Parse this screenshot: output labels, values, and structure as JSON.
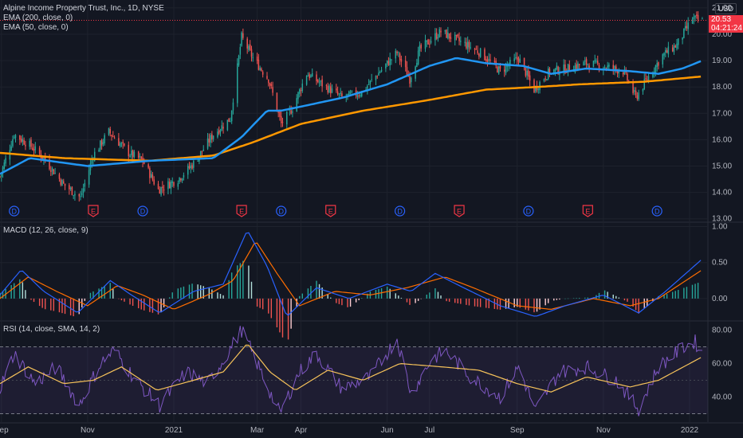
{
  "header": {
    "title": "Alpine Income Property Trust, Inc., 1D, NYSE",
    "ema200_label": "EMA (200, close, 0)",
    "ema50_label": "EMA (50, close, 0)",
    "currency": "USD",
    "price_badge": "20.53",
    "timer_badge": "04:21:24"
  },
  "colors": {
    "background": "#131722",
    "up": "#26a69a",
    "down": "#ef5350",
    "ema50": "#2196f3",
    "ema200": "#ff9800",
    "macd": "#2962ff",
    "signal": "#ff6d00",
    "rsi": "#7e57c2",
    "rsi_ma": "#f7c35a",
    "grid": "#1e222d"
  },
  "events": [
    {
      "label": "D",
      "type": "dividend",
      "date": "2020-09-10"
    },
    {
      "label": "E",
      "type": "earnings",
      "date": "2020-11-05"
    },
    {
      "label": "D",
      "type": "dividend",
      "date": "2020-12-10"
    },
    {
      "label": "E",
      "type": "earnings",
      "date": "2021-02-18"
    },
    {
      "label": "D",
      "type": "dividend",
      "date": "2021-03-18"
    },
    {
      "label": "E",
      "type": "earnings",
      "date": "2021-04-22"
    },
    {
      "label": "D",
      "type": "dividend",
      "date": "2021-06-10"
    },
    {
      "label": "E",
      "type": "earnings",
      "date": "2021-07-22"
    },
    {
      "label": "D",
      "type": "dividend",
      "date": "2021-09-09"
    },
    {
      "label": "E",
      "type": "earnings",
      "date": "2021-10-21"
    },
    {
      "label": "D",
      "type": "dividend",
      "date": "2021-12-09"
    }
  ],
  "chart_data": [
    {
      "type": "candlestick",
      "title": "Alpine Income Property Trust, Inc., 1D, NYSE",
      "xlim": [
        "2020-08-31",
        "2022-01-14"
      ],
      "ylim": [
        12.9,
        21.3
      ],
      "y_ticks": [
        "13.00",
        "14.00",
        "15.00",
        "16.00",
        "17.00",
        "18.00",
        "19.00",
        "20.00",
        "21.00"
      ],
      "x_ticks": [
        {
          "label": "Sep",
          "date": "2020-09-01"
        },
        {
          "label": "Nov",
          "date": "2020-11-01"
        },
        {
          "label": "2021",
          "date": "2021-01-01"
        },
        {
          "label": "Mar",
          "date": "2021-03-01"
        },
        {
          "label": "Apr",
          "date": "2021-04-01"
        },
        {
          "label": "Jun",
          "date": "2021-06-01"
        },
        {
          "label": "Jul",
          "date": "2021-07-01"
        },
        {
          "label": "Sep",
          "date": "2021-09-01"
        },
        {
          "label": "Nov",
          "date": "2021-11-01"
        },
        {
          "label": "2022",
          "date": "2022-01-01"
        }
      ],
      "close_anchors": [
        [
          "2020-08-31",
          14.6
        ],
        [
          "2020-09-10",
          16.2
        ],
        [
          "2020-09-21",
          15.8
        ],
        [
          "2020-10-01",
          15.3
        ],
        [
          "2020-10-15",
          14.3
        ],
        [
          "2020-10-27",
          13.8
        ],
        [
          "2020-11-05",
          15.4
        ],
        [
          "2020-11-16",
          16.3
        ],
        [
          "2020-11-30",
          15.5
        ],
        [
          "2020-12-10",
          15.2
        ],
        [
          "2020-12-21",
          14.1
        ],
        [
          "2021-01-04",
          14.5
        ],
        [
          "2021-01-15",
          15.1
        ],
        [
          "2021-01-29",
          16.2
        ],
        [
          "2021-02-10",
          16.8
        ],
        [
          "2021-02-18",
          19.9
        ],
        [
          "2021-02-26",
          19.1
        ],
        [
          "2021-03-09",
          18.3
        ],
        [
          "2021-03-18",
          16.6
        ],
        [
          "2021-03-26",
          17.2
        ],
        [
          "2021-04-05",
          18.5
        ],
        [
          "2021-04-16",
          18.1
        ],
        [
          "2021-04-30",
          17.6
        ],
        [
          "2021-05-14",
          17.8
        ],
        [
          "2021-05-27",
          18.6
        ],
        [
          "2021-06-08",
          19.3
        ],
        [
          "2021-06-17",
          18.3
        ],
        [
          "2021-06-24",
          19.4
        ],
        [
          "2021-07-02",
          19.8
        ],
        [
          "2021-07-09",
          20.1
        ],
        [
          "2021-07-16",
          19.9
        ],
        [
          "2021-07-27",
          19.6
        ],
        [
          "2021-08-06",
          19.3
        ],
        [
          "2021-08-20",
          18.6
        ],
        [
          "2021-09-02",
          19.1
        ],
        [
          "2021-09-13",
          17.9
        ],
        [
          "2021-09-24",
          18.6
        ],
        [
          "2021-10-06",
          18.7
        ],
        [
          "2021-10-20",
          18.9
        ],
        [
          "2021-11-01",
          18.8
        ],
        [
          "2021-11-15",
          18.6
        ],
        [
          "2021-11-24",
          17.6
        ],
        [
          "2021-12-03",
          18.4
        ],
        [
          "2021-12-13",
          19.2
        ],
        [
          "2021-12-23",
          19.6
        ],
        [
          "2022-01-03",
          20.6
        ],
        [
          "2022-01-10",
          20.5
        ]
      ],
      "ema50_anchors": [
        [
          "2020-08-31",
          14.7
        ],
        [
          "2020-09-21",
          15.3
        ],
        [
          "2020-11-01",
          15.0
        ],
        [
          "2020-12-15",
          15.2
        ],
        [
          "2021-01-29",
          15.3
        ],
        [
          "2021-02-18",
          16.1
        ],
        [
          "2021-03-08",
          17.1
        ],
        [
          "2021-03-18",
          17.1
        ],
        [
          "2021-04-05",
          17.3
        ],
        [
          "2021-05-01",
          17.6
        ],
        [
          "2021-06-01",
          18.1
        ],
        [
          "2021-07-01",
          18.8
        ],
        [
          "2021-07-20",
          19.1
        ],
        [
          "2021-08-10",
          18.9
        ],
        [
          "2021-09-05",
          18.8
        ],
        [
          "2021-09-25",
          18.5
        ],
        [
          "2021-10-20",
          18.7
        ],
        [
          "2021-11-20",
          18.6
        ],
        [
          "2021-12-10",
          18.5
        ],
        [
          "2021-12-27",
          18.7
        ],
        [
          "2022-01-10",
          19.0
        ]
      ],
      "ema200_anchors": [
        [
          "2020-08-31",
          15.5
        ],
        [
          "2020-10-15",
          15.3
        ],
        [
          "2020-12-15",
          15.2
        ],
        [
          "2021-01-29",
          15.4
        ],
        [
          "2021-02-26",
          15.9
        ],
        [
          "2021-04-01",
          16.6
        ],
        [
          "2021-05-15",
          17.1
        ],
        [
          "2021-06-30",
          17.5
        ],
        [
          "2021-08-10",
          17.9
        ],
        [
          "2021-09-15",
          18.0
        ],
        [
          "2021-10-15",
          18.1
        ],
        [
          "2021-11-30",
          18.2
        ],
        [
          "2022-01-10",
          18.4
        ]
      ],
      "last_close": 20.53
    },
    {
      "type": "line",
      "title": "MACD (12, 26, close, 9)",
      "ylim": [
        -0.3,
        1.05
      ],
      "y_ticks": [
        "1.00",
        "0.50",
        "0.00"
      ],
      "series": [
        {
          "name": "MACD",
          "anchors": [
            [
              "2020-08-31",
              0.05
            ],
            [
              "2020-09-15",
              0.4
            ],
            [
              "2020-10-01",
              0.1
            ],
            [
              "2020-10-25",
              -0.2
            ],
            [
              "2020-11-17",
              0.25
            ],
            [
              "2020-12-02",
              0.05
            ],
            [
              "2020-12-22",
              -0.2
            ],
            [
              "2021-01-15",
              0.1
            ],
            [
              "2021-02-05",
              0.2
            ],
            [
              "2021-02-22",
              0.95
            ],
            [
              "2021-03-08",
              0.45
            ],
            [
              "2021-03-22",
              -0.25
            ],
            [
              "2021-04-12",
              0.15
            ],
            [
              "2021-05-05",
              0.0
            ],
            [
              "2021-06-01",
              0.2
            ],
            [
              "2021-06-18",
              0.1
            ],
            [
              "2021-07-05",
              0.35
            ],
            [
              "2021-07-20",
              0.2
            ],
            [
              "2021-08-20",
              -0.1
            ],
            [
              "2021-09-14",
              -0.25
            ],
            [
              "2021-10-05",
              -0.1
            ],
            [
              "2021-11-01",
              0.05
            ],
            [
              "2021-11-26",
              -0.2
            ],
            [
              "2021-12-15",
              0.1
            ],
            [
              "2022-01-10",
              0.55
            ]
          ]
        },
        {
          "name": "Signal",
          "anchors": [
            [
              "2020-08-31",
              0.0
            ],
            [
              "2020-09-20",
              0.3
            ],
            [
              "2020-10-10",
              0.1
            ],
            [
              "2020-11-01",
              -0.1
            ],
            [
              "2020-11-22",
              0.18
            ],
            [
              "2020-12-10",
              0.05
            ],
            [
              "2021-01-01",
              -0.15
            ],
            [
              "2021-01-25",
              0.05
            ],
            [
              "2021-02-12",
              0.25
            ],
            [
              "2021-02-28",
              0.8
            ],
            [
              "2021-03-15",
              0.35
            ],
            [
              "2021-03-31",
              -0.1
            ],
            [
              "2021-04-25",
              0.1
            ],
            [
              "2021-05-20",
              0.05
            ],
            [
              "2021-06-15",
              0.15
            ],
            [
              "2021-07-12",
              0.3
            ],
            [
              "2021-08-01",
              0.15
            ],
            [
              "2021-09-01",
              -0.1
            ],
            [
              "2021-09-25",
              -0.15
            ],
            [
              "2021-10-25",
              0.0
            ],
            [
              "2021-11-20",
              -0.1
            ],
            [
              "2021-12-10",
              0.0
            ],
            [
              "2022-01-10",
              0.4
            ]
          ]
        }
      ]
    },
    {
      "type": "line",
      "title": "RSI (14, close, SMA, 14, 2)",
      "ylim": [
        25,
        85
      ],
      "y_ticks": [
        "80.00",
        "60.00",
        "40.00"
      ],
      "band": [
        30,
        70
      ],
      "series": [
        {
          "name": "RSI",
          "anchors": [
            [
              "2020-08-31",
              45
            ],
            [
              "2020-09-10",
              66
            ],
            [
              "2020-09-25",
              48
            ],
            [
              "2020-10-10",
              58
            ],
            [
              "2020-10-26",
              35
            ],
            [
              "2020-11-10",
              60
            ],
            [
              "2020-11-20",
              68
            ],
            [
              "2020-12-05",
              50
            ],
            [
              "2020-12-22",
              35
            ],
            [
              "2021-01-10",
              55
            ],
            [
              "2021-01-25",
              48
            ],
            [
              "2021-02-05",
              62
            ],
            [
              "2021-02-18",
              80
            ],
            [
              "2021-03-01",
              60
            ],
            [
              "2021-03-17",
              30
            ],
            [
              "2021-03-31",
              55
            ],
            [
              "2021-04-12",
              66
            ],
            [
              "2021-04-30",
              45
            ],
            [
              "2021-05-20",
              52
            ],
            [
              "2021-06-08",
              75
            ],
            [
              "2021-06-18",
              42
            ],
            [
              "2021-07-02",
              62
            ],
            [
              "2021-07-12",
              68
            ],
            [
              "2021-07-30",
              52
            ],
            [
              "2021-08-20",
              40
            ],
            [
              "2021-09-02",
              58
            ],
            [
              "2021-09-14",
              32
            ],
            [
              "2021-10-01",
              55
            ],
            [
              "2021-10-20",
              58
            ],
            [
              "2021-11-10",
              50
            ],
            [
              "2021-11-26",
              33
            ],
            [
              "2021-12-10",
              58
            ],
            [
              "2021-12-28",
              70
            ],
            [
              "2022-01-05",
              73
            ],
            [
              "2022-01-10",
              66
            ]
          ]
        },
        {
          "name": "RSI-based MA",
          "anchors": [
            [
              "2020-08-31",
              48
            ],
            [
              "2020-09-20",
              58
            ],
            [
              "2020-10-15",
              48
            ],
            [
              "2020-11-05",
              50
            ],
            [
              "2020-11-25",
              58
            ],
            [
              "2020-12-20",
              44
            ],
            [
              "2021-01-15",
              50
            ],
            [
              "2021-02-05",
              55
            ],
            [
              "2021-02-22",
              72
            ],
            [
              "2021-03-10",
              55
            ],
            [
              "2021-03-28",
              44
            ],
            [
              "2021-04-20",
              56
            ],
            [
              "2021-05-15",
              50
            ],
            [
              "2021-06-10",
              60
            ],
            [
              "2021-07-10",
              58
            ],
            [
              "2021-08-05",
              56
            ],
            [
              "2021-09-01",
              48
            ],
            [
              "2021-09-25",
              43
            ],
            [
              "2021-10-20",
              52
            ],
            [
              "2021-11-20",
              46
            ],
            [
              "2021-12-10",
              50
            ],
            [
              "2022-01-10",
              64
            ]
          ]
        }
      ]
    }
  ]
}
